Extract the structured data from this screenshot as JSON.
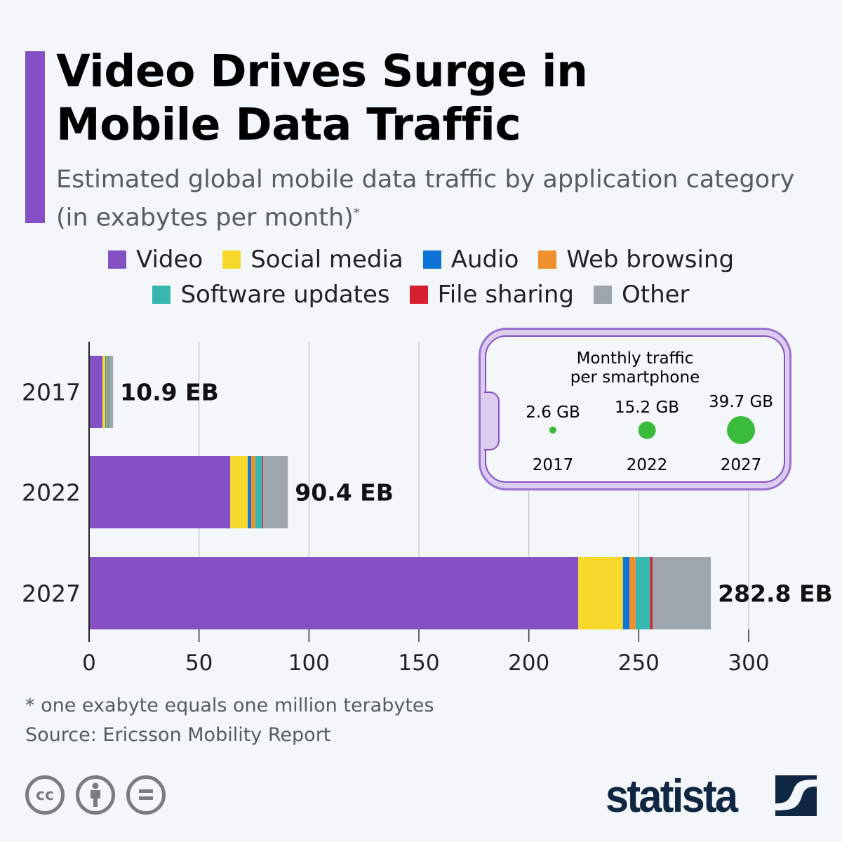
{
  "title": "Video Drives Surge in Mobile Data Traffic",
  "title_lines": [
    "Video Drives Surge in",
    "Mobile Data Traffic"
  ],
  "subtitle": "Estimated global mobile data traffic by application category (in exabytes per month)",
  "subtitle_mark": "*",
  "accent_color": "#8450c4",
  "chart_data": {
    "type": "bar",
    "orientation": "horizontal",
    "stacked": true,
    "categories": [
      "2017",
      "2022",
      "2027"
    ],
    "series": [
      {
        "name": "Video",
        "color": "#8450c4",
        "values": [
          6.1,
          64.2,
          222.5
        ]
      },
      {
        "name": "Social media",
        "color": "#f6d92a",
        "values": [
          1.3,
          8.0,
          20.3
        ]
      },
      {
        "name": "Audio",
        "color": "#0f74d8",
        "values": [
          0.3,
          1.5,
          3.0
        ]
      },
      {
        "name": "Web browsing",
        "color": "#f0912d",
        "values": [
          0.5,
          1.9,
          2.8
        ]
      },
      {
        "name": "Software updates",
        "color": "#37b7b0",
        "values": [
          0.8,
          3.1,
          6.6
        ]
      },
      {
        "name": "File sharing",
        "color": "#d6202f",
        "values": [
          0.1,
          0.5,
          1.1
        ]
      },
      {
        "name": "Other",
        "color": "#9ea6ae",
        "values": [
          1.8,
          11.2,
          26.5
        ]
      }
    ],
    "totals": [
      10.9,
      90.4,
      282.8
    ],
    "total_labels": [
      "10.9 EB",
      "90.4 EB",
      "282.8 EB"
    ],
    "xlim": [
      0,
      300
    ],
    "xticks": [
      "0",
      "50",
      "100",
      "150",
      "200",
      "250",
      "300"
    ],
    "grid": true,
    "legend": "top"
  },
  "inset": {
    "title_lines": [
      "Monthly traffic",
      "per smartphone"
    ],
    "items": [
      {
        "year": "2017",
        "label": "2.6 GB",
        "value": 2.6
      },
      {
        "year": "2022",
        "label": "15.2 GB",
        "value": 15.2
      },
      {
        "year": "2027",
        "label": "39.7 GB",
        "value": 39.7
      }
    ],
    "dot_color": "#3bbb3b"
  },
  "footnote": "* one exabyte equals one million terabytes",
  "source": "Source: Ericsson Mobility Report",
  "license_icons": [
    "cc-icon",
    "attribution-icon",
    "no-derivatives-icon"
  ],
  "license_cc_text": "cc",
  "brand": "statista"
}
